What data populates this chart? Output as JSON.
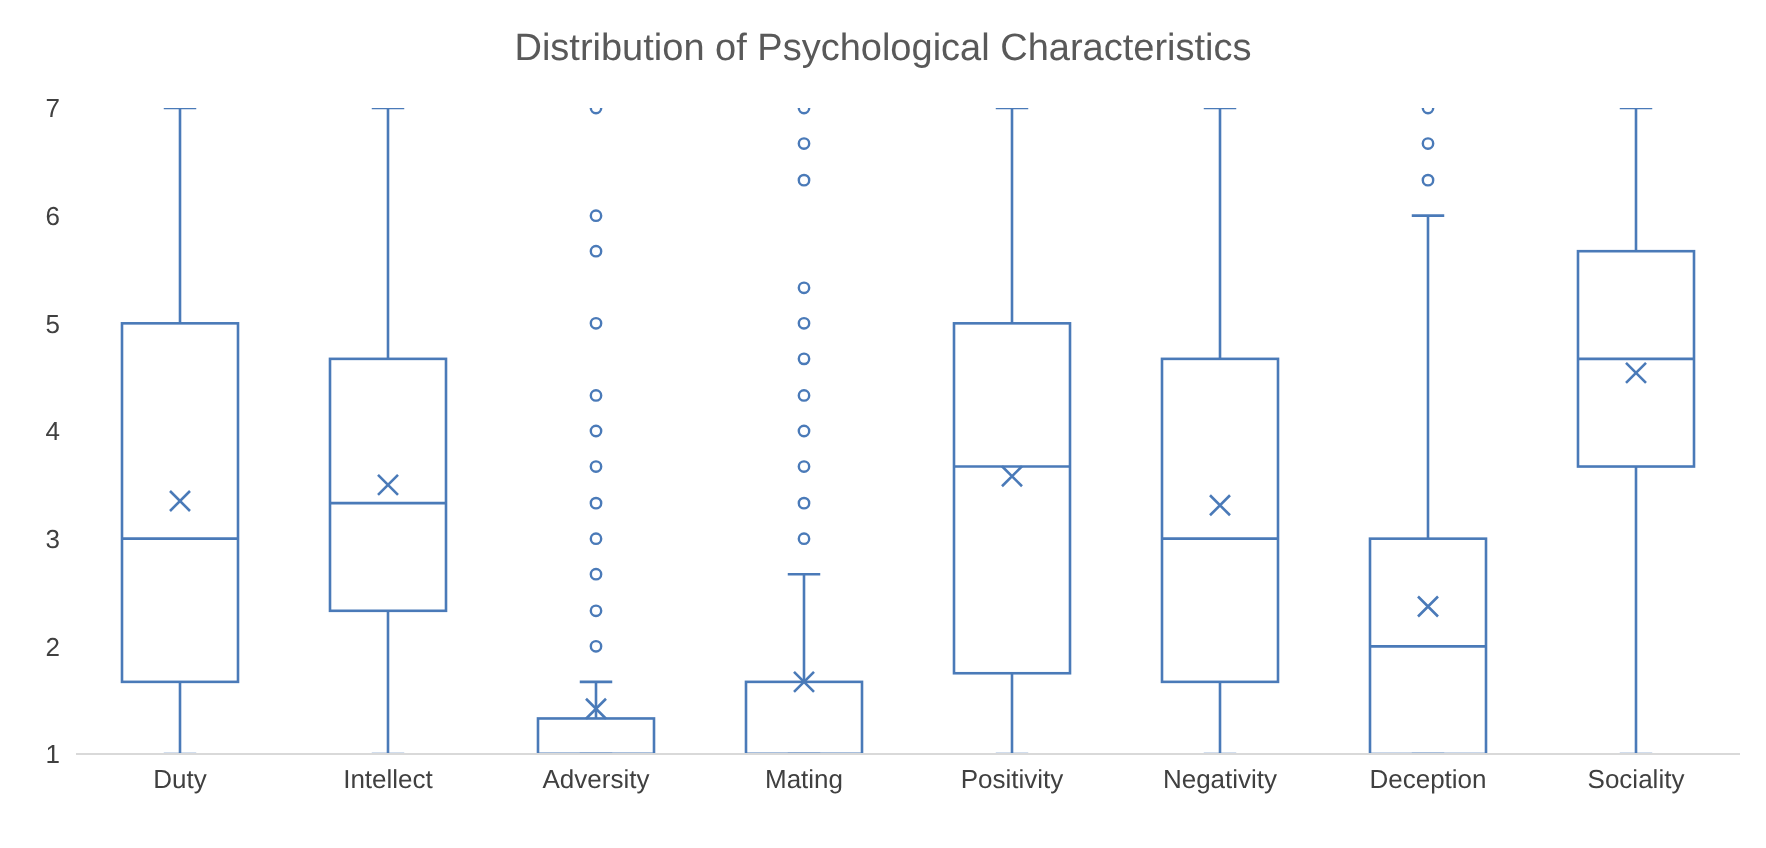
{
  "chart_data": {
    "type": "box",
    "title": "Distribution of Psychological Characteristics",
    "categories": [
      "Duty",
      "Intellect",
      "Adversity",
      "Mating",
      "Positivity",
      "Negativity",
      "Deception",
      "Sociality"
    ],
    "color": "#4a7ab8",
    "marker": "cross",
    "grid": false,
    "legend": false,
    "ylim": [
      1,
      7
    ],
    "yticks": [
      1,
      2,
      3,
      4,
      5,
      6,
      7
    ],
    "boxes": [
      {
        "low": 1,
        "q1": 1.67,
        "median": 3,
        "q3": 5,
        "high": 7,
        "mean": 3.35
      },
      {
        "low": 1,
        "q1": 2.33,
        "median": 3.33,
        "q3": 4.67,
        "high": 7,
        "mean": 3.5
      },
      {
        "low": 1,
        "q1": 1,
        "median": 1,
        "q3": 1.33,
        "high": 1.67,
        "mean": 1.42,
        "outliers": [
          2,
          2.33,
          2.67,
          3,
          3.33,
          3.67,
          4,
          4.33,
          5,
          5.67,
          6,
          7
        ]
      },
      {
        "low": 1,
        "q1": 1,
        "median": 1,
        "q3": 1.67,
        "high": 2.67,
        "mean": 1.67,
        "outliers": [
          3,
          3.33,
          3.67,
          4,
          4.33,
          4.67,
          5,
          5.33,
          6.33,
          6.67,
          7
        ]
      },
      {
        "low": 1,
        "q1": 1.75,
        "median": 3.67,
        "q3": 5,
        "high": 7,
        "mean": 3.58
      },
      {
        "low": 1,
        "q1": 1.67,
        "median": 3,
        "q3": 4.67,
        "high": 7,
        "mean": 3.31
      },
      {
        "low": 1,
        "q1": 1,
        "median": 2,
        "q3": 3,
        "high": 6,
        "mean": 2.37,
        "outliers": [
          6.33,
          6.67,
          7
        ]
      },
      {
        "low": 1,
        "q1": 3.67,
        "median": 4.67,
        "q3": 5.67,
        "high": 7,
        "mean": 4.54
      }
    ]
  }
}
